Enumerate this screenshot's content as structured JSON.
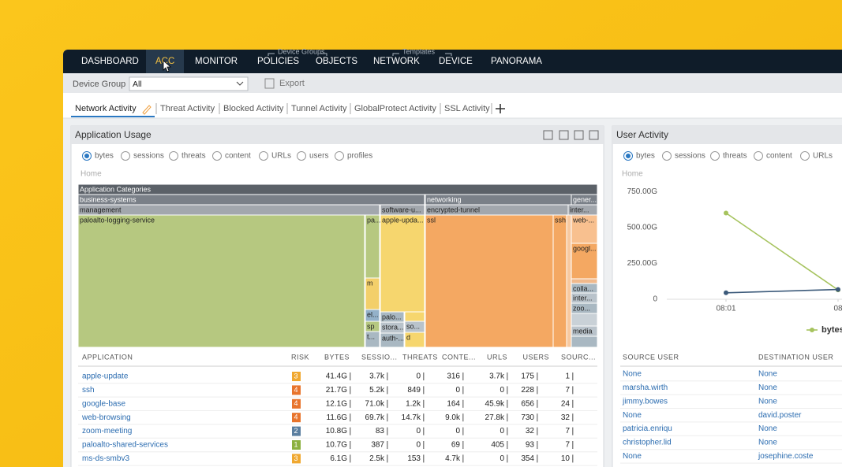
{
  "nav": {
    "items": [
      "DASHBOARD",
      "ACC",
      "MONITOR",
      "POLICIES",
      "OBJECTS",
      "NETWORK",
      "DEVICE",
      "PANORAMA"
    ],
    "group_labels": [
      "Device Groups",
      "Templates"
    ]
  },
  "toolbar": {
    "device_group_label": "Device Group",
    "device_group_value": "All",
    "export": "Export"
  },
  "tabs": [
    "Network Activity",
    "Threat Activity",
    "Blocked Activity",
    "Tunnel Activity",
    "GlobalProtect Activity",
    "SSL Activity"
  ],
  "app_usage": {
    "title": "Application Usage",
    "radios": [
      "bytes",
      "sessions",
      "threats",
      "content",
      "URLs",
      "users",
      "profiles"
    ],
    "breadcrumb": "Home",
    "treemap_labels": [
      "Application Categories",
      "business-systems",
      "networking",
      "gener...",
      "management",
      "software-u...",
      "encrypted-tunnel",
      "inter...",
      "paloalto-logging-service",
      "pa...",
      "apple-upda...",
      "ssl",
      "ssh",
      "web-...",
      "googl...",
      "colla...",
      "inter...",
      "zoo...",
      "media",
      "m",
      "el...",
      "sp",
      "t...",
      "palo...",
      "stora...",
      "auth-...",
      "so...",
      "d"
    ],
    "table": {
      "headers": [
        "APPLICATION",
        "RISK",
        "BYTES",
        "SESSIO...",
        "THREATS",
        "CONTE...",
        "URLS",
        "USERS",
        "SOURC..."
      ],
      "rows": [
        [
          "apple-update",
          "3",
          "41.4G",
          "3.7k",
          "0",
          "316",
          "3.7k",
          "175",
          "1"
        ],
        [
          "ssh",
          "4",
          "21.7G",
          "5.2k",
          "849",
          "0",
          "0",
          "228",
          "7"
        ],
        [
          "google-base",
          "4",
          "12.1G",
          "71.0k",
          "1.2k",
          "164",
          "45.9k",
          "656",
          "24"
        ],
        [
          "web-browsing",
          "4",
          "11.6G",
          "69.7k",
          "14.7k",
          "9.0k",
          "27.8k",
          "730",
          "32"
        ],
        [
          "zoom-meeting",
          "2",
          "10.8G",
          "83",
          "0",
          "0",
          "0",
          "32",
          "7"
        ],
        [
          "paloalto-shared-services",
          "1",
          "10.7G",
          "387",
          "0",
          "69",
          "405",
          "93",
          "7"
        ],
        [
          "ms-ds-smbv3",
          "3",
          "6.1G",
          "2.5k",
          "153",
          "4.7k",
          "0",
          "354",
          "10"
        ]
      ]
    }
  },
  "user_activity": {
    "title": "User Activity",
    "radios": [
      "bytes",
      "sessions",
      "threats",
      "content",
      "URLs"
    ],
    "breadcrumb": "Home",
    "chart_data": {
      "type": "line",
      "categories": [
        "08:01",
        "08"
      ],
      "series": [
        {
          "name": "bytes",
          "color": "#a6c35e",
          "values": [
            600,
            65
          ]
        },
        {
          "color": "#3c5a7a",
          "values": [
            45,
            68
          ]
        }
      ],
      "ylim": [
        0,
        800
      ],
      "yticks": [
        {
          "value": 750,
          "label": "750.00G"
        },
        {
          "value": 500,
          "label": "500.00G"
        },
        {
          "value": 250,
          "label": "250.00G"
        },
        0
      ],
      "grid": false
    },
    "table": {
      "headers": [
        "SOURCE USER",
        "DESTINATION USER"
      ],
      "rows": [
        [
          "None",
          "None"
        ],
        [
          "marsha.wirth",
          "None"
        ],
        [
          "jimmy.bowes",
          "None"
        ],
        [
          "None",
          "david.poster"
        ],
        [
          "patricia.enriqu",
          "None"
        ],
        [
          "christopher.lid",
          "None"
        ],
        [
          "None",
          "josephine.coste"
        ]
      ]
    }
  }
}
